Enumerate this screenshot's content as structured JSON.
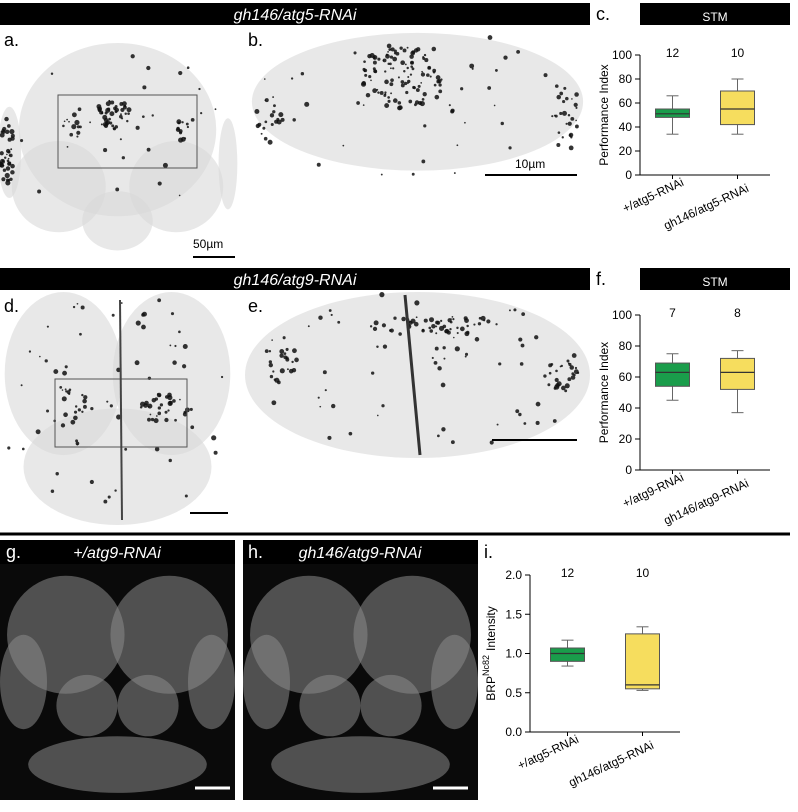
{
  "headers": {
    "row1": "gh146/atg5-RNAi",
    "row2": "gh146/atg9-RNAi",
    "panel_g": "+/atg9-RNAi",
    "panel_h": "gh146/atg9-RNAi"
  },
  "panel_letters": [
    "a.",
    "b.",
    "c.",
    "d.",
    "e.",
    "f.",
    "g.",
    "h.",
    "i."
  ],
  "scale_labels": {
    "a": "50µm",
    "b": "10µm"
  },
  "charts": [
    {
      "type": "box",
      "title": "STM",
      "y_label": "Performance Index",
      "ylim": [
        0,
        100
      ],
      "yticks": [
        0,
        20,
        40,
        60,
        80,
        100
      ],
      "groups": [
        {
          "name": "+/atg5-RNAi",
          "n": 12,
          "color": "#1a9d4b",
          "min": 34,
          "q1": 48,
          "median": 51,
          "q3": 55,
          "max": 66
        },
        {
          "name": "gh146/atg5-RNAi",
          "n": 10,
          "color": "#f6dd5e",
          "min": 34,
          "q1": 42,
          "median": 55,
          "q3": 70,
          "max": 80
        }
      ]
    },
    {
      "type": "box",
      "title": "STM",
      "y_label": "Performance Index",
      "ylim": [
        0,
        100
      ],
      "yticks": [
        0,
        20,
        40,
        60,
        80,
        100
      ],
      "groups": [
        {
          "name": "+/atg9-RNAi",
          "n": 7,
          "color": "#1a9d4b",
          "min": 45,
          "q1": 54,
          "median": 63,
          "q3": 69,
          "max": 75
        },
        {
          "name": "gh146/atg9-RNAi",
          "n": 8,
          "color": "#f6dd5e",
          "min": 37,
          "q1": 52,
          "median": 63,
          "q3": 72,
          "max": 77
        }
      ]
    },
    {
      "type": "box",
      "y_label": "BRP",
      "y_label_sup": "Nc82",
      "y_label_rest": "Intensity",
      "ylim": [
        0,
        2
      ],
      "yticks": [
        {
          "value": 0,
          "label": "0.0"
        },
        {
          "value": 0.5,
          "label": "0.5"
        },
        {
          "value": 1,
          "label": "1.0"
        },
        {
          "value": 1.5,
          "label": "1.5"
        },
        {
          "value": 2,
          "label": "2.0"
        }
      ],
      "groups": [
        {
          "name": "+/atg5-RNAi",
          "n": 12,
          "color": "#1a9d4b",
          "min": 0.84,
          "q1": 0.9,
          "median": 1.0,
          "q3": 1.07,
          "max": 1.17
        },
        {
          "name": "gh146/atg5-RNAi",
          "n": 10,
          "color": "#f6dd5e",
          "min": 0.53,
          "q1": 0.55,
          "median": 0.6,
          "q3": 1.25,
          "max": 1.34
        }
      ]
    }
  ]
}
